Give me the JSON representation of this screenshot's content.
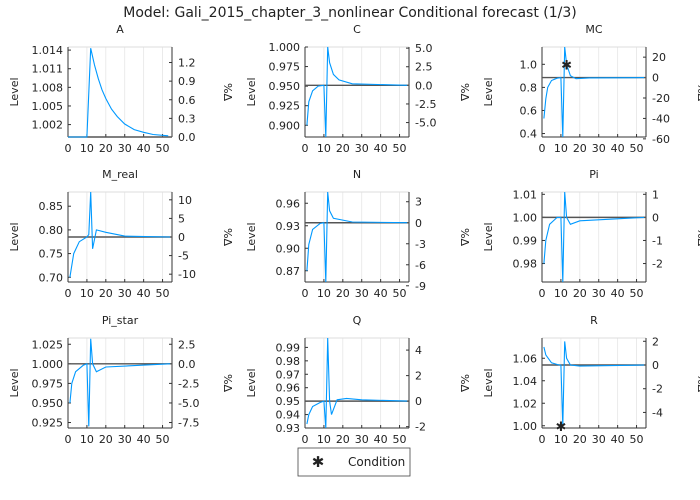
{
  "title": "Model: Gali_2015_chapter_3_nonlinear      Conditional forecast  (1/3)",
  "legend": {
    "label": "Condition",
    "placement": "bottom-center"
  },
  "colors": {
    "series": "#0099ff",
    "steady_state": "#555555",
    "condition": "#000000",
    "grid": "#e6e6e6"
  },
  "chart_data": [
    {
      "type": "line",
      "title": "A",
      "ylabel": "Level",
      "y2label": "%Δ",
      "xlim": [
        0,
        55
      ],
      "xticks": [
        0,
        10,
        20,
        30,
        40,
        50
      ],
      "ylim": [
        1.0,
        1.0145
      ],
      "yticks": [
        1.002,
        1.005,
        1.008,
        1.011,
        1.014
      ],
      "ytick_digits": 3,
      "y2ticks": [
        "0.0",
        "0.3",
        "0.6",
        "0.9",
        "1.2"
      ],
      "steady_state": 1.0,
      "series": [
        [
          0,
          1.0
        ],
        [
          10,
          1.0
        ],
        [
          12,
          1.0143
        ],
        [
          14,
          1.0116
        ],
        [
          16,
          1.0094
        ],
        [
          18,
          1.0076
        ],
        [
          20,
          1.0062
        ],
        [
          23,
          1.0045
        ],
        [
          26,
          1.0033
        ],
        [
          30,
          1.0021
        ],
        [
          35,
          1.0012
        ],
        [
          40,
          1.00075
        ],
        [
          45,
          1.0004
        ],
        [
          53,
          1.0002
        ]
      ],
      "conditions": []
    },
    {
      "type": "line",
      "title": "C",
      "ylabel": "Level",
      "y2label": "%Δ",
      "xlim": [
        0,
        55
      ],
      "xticks": [
        0,
        10,
        20,
        30,
        40,
        50
      ],
      "ylim": [
        0.885,
        1.0
      ],
      "yticks": [
        0.9,
        0.925,
        0.95,
        0.975,
        1.0
      ],
      "ytick_digits": 3,
      "y2ticks": [
        "-5.0",
        "-2.5",
        "0.0",
        "2.5",
        "5.0"
      ],
      "steady_state": 0.951,
      "series": [
        [
          1,
          0.9
        ],
        [
          2,
          0.93
        ],
        [
          4,
          0.944
        ],
        [
          7,
          0.95
        ],
        [
          10,
          0.951
        ],
        [
          11,
          0.885
        ],
        [
          12,
          1.0
        ],
        [
          13,
          0.98
        ],
        [
          15,
          0.965
        ],
        [
          18,
          0.958
        ],
        [
          25,
          0.953
        ],
        [
          54,
          0.951
        ]
      ],
      "conditions": []
    },
    {
      "type": "line",
      "title": "MC",
      "ylabel": "Level",
      "y2label": "%Δ",
      "xlim": [
        0,
        55
      ],
      "xticks": [
        0,
        10,
        20,
        30,
        40,
        50
      ],
      "ylim": [
        0.37,
        1.15
      ],
      "yticks": [
        0.4,
        0.6,
        0.8,
        1.0
      ],
      "ytick_digits": 1,
      "y2ticks": [
        "-60",
        "-40",
        "-20",
        "0",
        "20"
      ],
      "steady_state": 0.885,
      "series": [
        [
          1,
          0.53
        ],
        [
          2,
          0.7
        ],
        [
          3,
          0.8
        ],
        [
          5,
          0.86
        ],
        [
          8,
          0.88
        ],
        [
          10,
          0.885
        ],
        [
          11,
          0.37
        ],
        [
          12,
          1.15
        ],
        [
          13,
          1.0
        ],
        [
          15,
          0.9
        ],
        [
          18,
          0.875
        ],
        [
          25,
          0.882
        ],
        [
          54,
          0.885
        ]
      ],
      "conditions": [
        [
          13,
          1.0
        ]
      ]
    },
    {
      "type": "line",
      "title": "M_real",
      "ylabel": "Level",
      "y2label": "%Δ",
      "xlim": [
        0,
        55
      ],
      "xticks": [
        0,
        10,
        20,
        30,
        40,
        50
      ],
      "ylim": [
        0.69,
        0.88
      ],
      "yticks": [
        0.7,
        0.75,
        0.8,
        0.85
      ],
      "ytick_digits": 2,
      "y2ticks": [
        "-10",
        "-5",
        "0",
        "5",
        "10"
      ],
      "steady_state": 0.785,
      "series": [
        [
          1,
          0.7
        ],
        [
          3,
          0.75
        ],
        [
          6,
          0.775
        ],
        [
          10,
          0.785
        ],
        [
          11,
          0.79
        ],
        [
          12,
          0.88
        ],
        [
          13,
          0.76
        ],
        [
          15,
          0.8
        ],
        [
          20,
          0.795
        ],
        [
          30,
          0.787
        ],
        [
          54,
          0.785
        ]
      ],
      "conditions": []
    },
    {
      "type": "line",
      "title": "N",
      "ylabel": "Level",
      "y2label": "%Δ",
      "xlim": [
        0,
        55
      ],
      "xticks": [
        0,
        10,
        20,
        30,
        40,
        50
      ],
      "ylim": [
        0.855,
        0.975
      ],
      "yticks": [
        0.87,
        0.9,
        0.93,
        0.96
      ],
      "ytick_digits": 2,
      "y2ticks": [
        "-9",
        "-6",
        "-3",
        "0",
        "3"
      ],
      "steady_state": 0.934,
      "series": [
        [
          1,
          0.87
        ],
        [
          2,
          0.905
        ],
        [
          4,
          0.925
        ],
        [
          8,
          0.933
        ],
        [
          10,
          0.934
        ],
        [
          11,
          0.855
        ],
        [
          12,
          0.975
        ],
        [
          13,
          0.95
        ],
        [
          15,
          0.94
        ],
        [
          25,
          0.935
        ],
        [
          54,
          0.934
        ]
      ],
      "conditions": []
    },
    {
      "type": "line",
      "title": "Pi",
      "ylabel": "Level",
      "y2label": "%Δ",
      "xlim": [
        0,
        55
      ],
      "xticks": [
        0,
        10,
        20,
        30,
        40,
        50
      ],
      "ylim": [
        0.972,
        1.011
      ],
      "yticks": [
        0.98,
        0.99,
        1.0,
        1.01
      ],
      "ytick_digits": 2,
      "y2ticks": [
        "-2",
        "-1",
        "0",
        "1"
      ],
      "steady_state": 1.0,
      "series": [
        [
          1,
          0.98
        ],
        [
          2,
          0.99
        ],
        [
          4,
          0.997
        ],
        [
          8,
          1.0
        ],
        [
          10,
          1.0
        ],
        [
          11,
          0.972
        ],
        [
          12,
          1.011
        ],
        [
          13,
          1.0
        ],
        [
          15,
          0.997
        ],
        [
          20,
          0.9985
        ],
        [
          54,
          1.0
        ]
      ],
      "conditions": []
    },
    {
      "type": "line",
      "title": "Pi_star",
      "ylabel": "Level",
      "y2label": "%Δ",
      "xlim": [
        0,
        55
      ],
      "xticks": [
        0,
        10,
        20,
        30,
        40,
        50
      ],
      "ylim": [
        0.918,
        1.033
      ],
      "yticks": [
        0.925,
        0.95,
        0.975,
        1.0,
        1.025
      ],
      "ytick_digits": 3,
      "y2ticks": [
        "-7.5",
        "-5.0",
        "-2.5",
        "0.0",
        "2.5"
      ],
      "steady_state": 1.0,
      "series": [
        [
          1,
          0.95
        ],
        [
          2,
          0.975
        ],
        [
          4,
          0.99
        ],
        [
          8,
          0.998
        ],
        [
          10,
          1.0
        ],
        [
          11,
          0.92
        ],
        [
          12,
          1.032
        ],
        [
          13,
          1.0
        ],
        [
          15,
          0.99
        ],
        [
          20,
          0.996
        ],
        [
          54,
          1.0
        ]
      ],
      "conditions": []
    },
    {
      "type": "line",
      "title": "Q",
      "ylabel": "Level",
      "y2label": "%Δ",
      "xlim": [
        0,
        55
      ],
      "xticks": [
        0,
        10,
        20,
        30,
        40,
        50
      ],
      "ylim": [
        0.93,
        0.997
      ],
      "yticks": [
        0.93,
        0.94,
        0.95,
        0.96,
        0.97,
        0.98,
        0.99
      ],
      "ytick_digits": 2,
      "y2ticks": [
        "-2",
        "0",
        "2",
        "4"
      ],
      "steady_state": 0.95,
      "series": [
        [
          1,
          0.933
        ],
        [
          2,
          0.94
        ],
        [
          4,
          0.946
        ],
        [
          8,
          0.949
        ],
        [
          10,
          0.95
        ],
        [
          11,
          0.93
        ],
        [
          12,
          0.997
        ],
        [
          13,
          0.95
        ],
        [
          14,
          0.94
        ],
        [
          17,
          0.951
        ],
        [
          22,
          0.952
        ],
        [
          30,
          0.951
        ],
        [
          54,
          0.95
        ]
      ],
      "conditions": []
    },
    {
      "type": "line",
      "title": "R",
      "ylabel": "Level",
      "y2label": "%Δ",
      "xlim": [
        0,
        55
      ],
      "xticks": [
        0,
        10,
        20,
        30,
        40,
        50
      ],
      "ylim": [
        0.998,
        1.078
      ],
      "yticks": [
        1.0,
        1.02,
        1.04,
        1.06
      ],
      "ytick_digits": 2,
      "y2ticks": [
        "-4",
        "-2",
        "0",
        "2"
      ],
      "steady_state": 1.054,
      "series": [
        [
          1,
          1.07
        ],
        [
          2,
          1.063
        ],
        [
          5,
          1.056
        ],
        [
          9,
          1.054
        ],
        [
          10,
          1.054
        ],
        [
          11,
          1.0
        ],
        [
          12,
          1.075
        ],
        [
          13,
          1.06
        ],
        [
          15,
          1.054
        ],
        [
          20,
          1.053
        ],
        [
          54,
          1.054
        ]
      ],
      "conditions": [
        [
          10,
          1.0
        ]
      ]
    }
  ]
}
